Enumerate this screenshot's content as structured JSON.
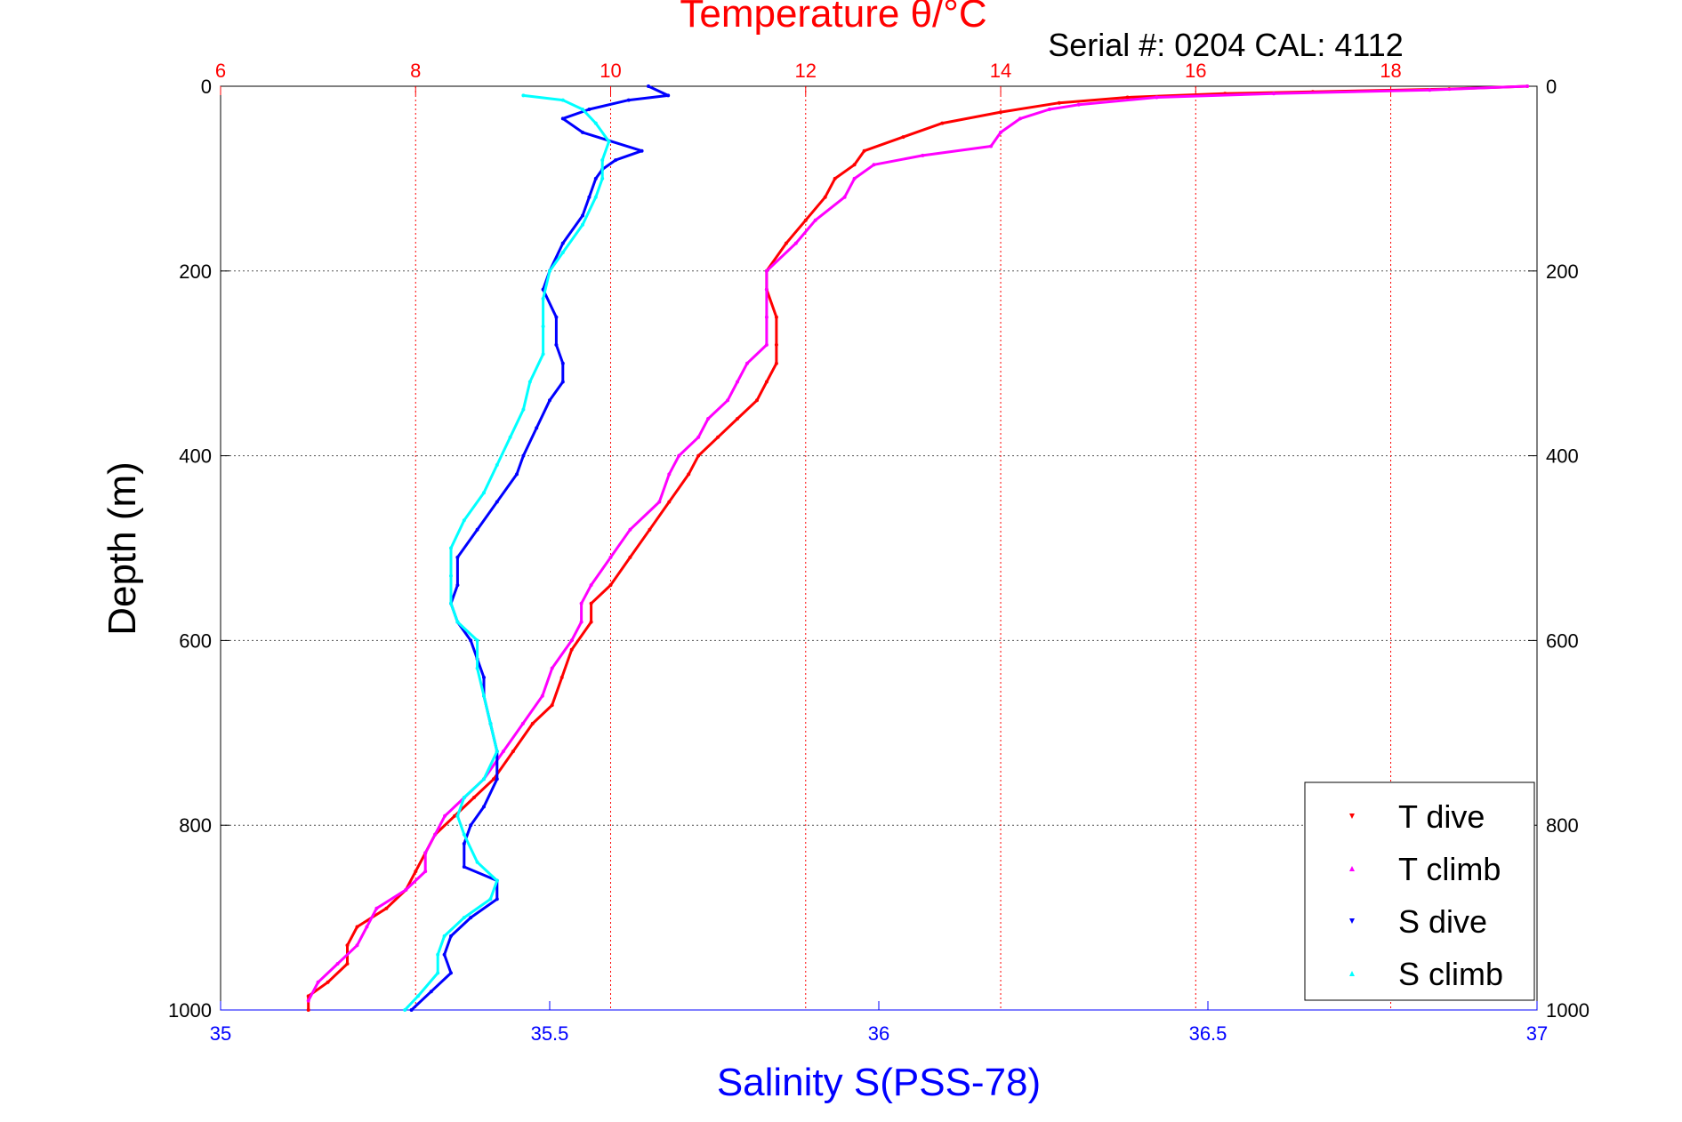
{
  "chart_data": {
    "type": "scatter",
    "title": "Temperature θ/°C",
    "subtitle": "Serial #: 0204  CAL: 4112",
    "xlabel": "Salinity S(PSS-78)",
    "ylabel": "Depth (m)",
    "y_reversed": true,
    "ylim": [
      0,
      1000
    ],
    "y_ticks": [
      0,
      200,
      400,
      600,
      800,
      1000
    ],
    "x_bottom": {
      "label": "Salinity S(PSS-78)",
      "range": [
        35,
        37
      ],
      "ticks": [
        35,
        35.5,
        36,
        36.5,
        37
      ],
      "color": "#0000ff"
    },
    "x_top": {
      "label": "Temperature θ/°C",
      "range": [
        6,
        19.5
      ],
      "ticks": [
        6,
        8,
        10,
        12,
        14,
        16,
        18
      ],
      "color": "#ff0000"
    },
    "grid": true,
    "legend_position": "bottom-right",
    "series": [
      {
        "name": "T dive",
        "axis": "temperature",
        "color": "#ff0000",
        "marker": "triangle-down",
        "points": [
          [
            19.4,
            0
          ],
          [
            18.6,
            3
          ],
          [
            17.2,
            6
          ],
          [
            16.3,
            8
          ],
          [
            15.3,
            12
          ],
          [
            14.6,
            18
          ],
          [
            14.0,
            28
          ],
          [
            13.4,
            40
          ],
          [
            13.0,
            55
          ],
          [
            12.6,
            70
          ],
          [
            12.5,
            85
          ],
          [
            12.3,
            100
          ],
          [
            12.2,
            120
          ],
          [
            12.0,
            145
          ],
          [
            11.8,
            170
          ],
          [
            11.6,
            200
          ],
          [
            11.6,
            220
          ],
          [
            11.7,
            250
          ],
          [
            11.7,
            280
          ],
          [
            11.7,
            300
          ],
          [
            11.6,
            320
          ],
          [
            11.5,
            340
          ],
          [
            11.3,
            360
          ],
          [
            11.1,
            380
          ],
          [
            10.9,
            400
          ],
          [
            10.8,
            420
          ],
          [
            10.6,
            450
          ],
          [
            10.4,
            480
          ],
          [
            10.2,
            510
          ],
          [
            10.0,
            540
          ],
          [
            9.8,
            560
          ],
          [
            9.8,
            580
          ],
          [
            9.6,
            610
          ],
          [
            9.5,
            640
          ],
          [
            9.4,
            670
          ],
          [
            9.2,
            690
          ],
          [
            9.0,
            720
          ],
          [
            8.8,
            750
          ],
          [
            8.6,
            770
          ],
          [
            8.4,
            790
          ],
          [
            8.2,
            810
          ],
          [
            8.1,
            830
          ],
          [
            8.0,
            850
          ],
          [
            7.9,
            870
          ],
          [
            7.7,
            890
          ],
          [
            7.4,
            910
          ],
          [
            7.3,
            930
          ],
          [
            7.3,
            950
          ],
          [
            7.1,
            970
          ],
          [
            6.9,
            985
          ],
          [
            6.9,
            1000
          ]
        ]
      },
      {
        "name": "T climb",
        "axis": "temperature",
        "color": "#ff00ff",
        "marker": "triangle-up",
        "points": [
          [
            19.4,
            0
          ],
          [
            18.4,
            4
          ],
          [
            16.8,
            8
          ],
          [
            15.6,
            12
          ],
          [
            14.8,
            20
          ],
          [
            14.5,
            25
          ],
          [
            14.2,
            35
          ],
          [
            14.0,
            50
          ],
          [
            13.9,
            65
          ],
          [
            13.2,
            75
          ],
          [
            12.7,
            85
          ],
          [
            12.5,
            100
          ],
          [
            12.4,
            120
          ],
          [
            12.1,
            145
          ],
          [
            11.9,
            170
          ],
          [
            11.6,
            200
          ],
          [
            11.6,
            220
          ],
          [
            11.6,
            250
          ],
          [
            11.6,
            280
          ],
          [
            11.4,
            300
          ],
          [
            11.3,
            320
          ],
          [
            11.2,
            340
          ],
          [
            11.0,
            360
          ],
          [
            10.9,
            380
          ],
          [
            10.7,
            400
          ],
          [
            10.6,
            420
          ],
          [
            10.5,
            450
          ],
          [
            10.2,
            480
          ],
          [
            10.0,
            510
          ],
          [
            9.8,
            540
          ],
          [
            9.7,
            560
          ],
          [
            9.7,
            580
          ],
          [
            9.6,
            600
          ],
          [
            9.4,
            630
          ],
          [
            9.3,
            660
          ],
          [
            9.1,
            690
          ],
          [
            8.9,
            720
          ],
          [
            8.7,
            750
          ],
          [
            8.5,
            770
          ],
          [
            8.3,
            790
          ],
          [
            8.2,
            810
          ],
          [
            8.1,
            830
          ],
          [
            8.1,
            850
          ],
          [
            7.9,
            870
          ],
          [
            7.6,
            890
          ],
          [
            7.5,
            910
          ],
          [
            7.4,
            930
          ],
          [
            7.2,
            950
          ],
          [
            7.0,
            970
          ],
          [
            6.9,
            990
          ]
        ]
      },
      {
        "name": "S dive",
        "axis": "salinity",
        "color": "#0000ff",
        "marker": "triangle-down",
        "points": [
          [
            35.65,
            0
          ],
          [
            35.68,
            10
          ],
          [
            35.62,
            15
          ],
          [
            35.56,
            25
          ],
          [
            35.52,
            35
          ],
          [
            35.55,
            50
          ],
          [
            35.64,
            70
          ],
          [
            35.6,
            80
          ],
          [
            35.58,
            90
          ],
          [
            35.57,
            100
          ],
          [
            35.56,
            120
          ],
          [
            35.55,
            140
          ],
          [
            35.52,
            170
          ],
          [
            35.5,
            200
          ],
          [
            35.49,
            220
          ],
          [
            35.51,
            250
          ],
          [
            35.51,
            280
          ],
          [
            35.52,
            300
          ],
          [
            35.52,
            320
          ],
          [
            35.5,
            340
          ],
          [
            35.48,
            370
          ],
          [
            35.46,
            400
          ],
          [
            35.45,
            420
          ],
          [
            35.42,
            450
          ],
          [
            35.39,
            480
          ],
          [
            35.36,
            510
          ],
          [
            35.36,
            540
          ],
          [
            35.35,
            560
          ],
          [
            35.36,
            580
          ],
          [
            35.38,
            600
          ],
          [
            35.39,
            620
          ],
          [
            35.4,
            640
          ],
          [
            35.4,
            660
          ],
          [
            35.41,
            690
          ],
          [
            35.42,
            720
          ],
          [
            35.42,
            750
          ],
          [
            35.4,
            780
          ],
          [
            35.38,
            800
          ],
          [
            35.37,
            820
          ],
          [
            35.37,
            845
          ],
          [
            35.42,
            860
          ],
          [
            35.42,
            880
          ],
          [
            35.38,
            900
          ],
          [
            35.35,
            920
          ],
          [
            35.34,
            940
          ],
          [
            35.35,
            960
          ],
          [
            35.32,
            980
          ],
          [
            35.29,
            1000
          ]
        ]
      },
      {
        "name": "S climb",
        "axis": "salinity",
        "color": "#00ffff",
        "marker": "triangle-up",
        "points": [
          [
            35.46,
            10
          ],
          [
            35.52,
            15
          ],
          [
            35.55,
            25
          ],
          [
            35.57,
            40
          ],
          [
            35.59,
            60
          ],
          [
            35.58,
            80
          ],
          [
            35.58,
            100
          ],
          [
            35.57,
            120
          ],
          [
            35.55,
            150
          ],
          [
            35.52,
            180
          ],
          [
            35.5,
            200
          ],
          [
            35.49,
            230
          ],
          [
            35.49,
            260
          ],
          [
            35.49,
            290
          ],
          [
            35.47,
            320
          ],
          [
            35.46,
            350
          ],
          [
            35.44,
            380
          ],
          [
            35.42,
            410
          ],
          [
            35.4,
            440
          ],
          [
            35.37,
            470
          ],
          [
            35.35,
            500
          ],
          [
            35.35,
            530
          ],
          [
            35.35,
            560
          ],
          [
            35.36,
            580
          ],
          [
            35.39,
            600
          ],
          [
            35.39,
            630
          ],
          [
            35.4,
            660
          ],
          [
            35.41,
            690
          ],
          [
            35.42,
            720
          ],
          [
            35.4,
            750
          ],
          [
            35.37,
            770
          ],
          [
            35.36,
            790
          ],
          [
            35.37,
            810
          ],
          [
            35.39,
            840
          ],
          [
            35.42,
            860
          ],
          [
            35.41,
            880
          ],
          [
            35.37,
            900
          ],
          [
            35.34,
            920
          ],
          [
            35.33,
            940
          ],
          [
            35.33,
            960
          ],
          [
            35.3,
            985
          ],
          [
            35.28,
            1000
          ]
        ]
      }
    ]
  }
}
